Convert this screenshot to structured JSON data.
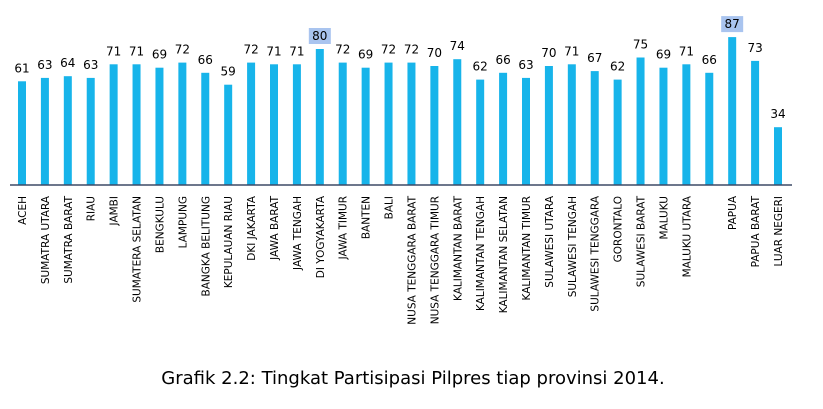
{
  "chart_data": {
    "type": "bar",
    "title": "Grafik 2.2: Tingkat Partisipasi Pilpres tiap provinsi 2014.",
    "categories": [
      "ACEH",
      "SUMATRA UTARA",
      "SUMATRA BARAT",
      "RIAU",
      "JAMBI",
      "SUMATERA SELATAN",
      "BENGKULU",
      "LAMPUNG",
      "BANGKA BELITUNG",
      "KEPULAUAN RIAU",
      "DKI JAKARTA",
      "JAWA BARAT",
      "JAWA TENGAH",
      "DI YOGYAKARTA",
      "JAWA TIMUR",
      "BANTEN",
      "BALI",
      "NUSA TENGGARA BARAT",
      "NUSA TENGGARA TIMUR",
      "KALIMANTAN BARAT",
      "KALIMANTAN TENGAH",
      "KALIMANTAN SELATAN",
      "KALIMANTAN TIMUR",
      "SULAWESI UTARA",
      "SULAWESI TENGAH",
      "SULAWESI TENGGARA",
      "GORONTALO",
      "SULAWESI BARAT",
      "MALUKU",
      "MALUKU UTARA",
      null,
      "PAPUA",
      "PAPUA BARAT",
      "LUAR NEGERI"
    ],
    "values": [
      61,
      63,
      64,
      63,
      71,
      71,
      69,
      72,
      66,
      59,
      72,
      71,
      71,
      80,
      72,
      69,
      72,
      72,
      70,
      74,
      62,
      66,
      63,
      70,
      71,
      67,
      62,
      75,
      69,
      71,
      66,
      87,
      73,
      34
    ],
    "color": "#17b4ea",
    "ylim": [
      0,
      100
    ],
    "highlight": {
      "color": "#a9c4ef",
      "categories": [
        "DI YOGYAKARTA",
        "PAPUA"
      ]
    }
  }
}
